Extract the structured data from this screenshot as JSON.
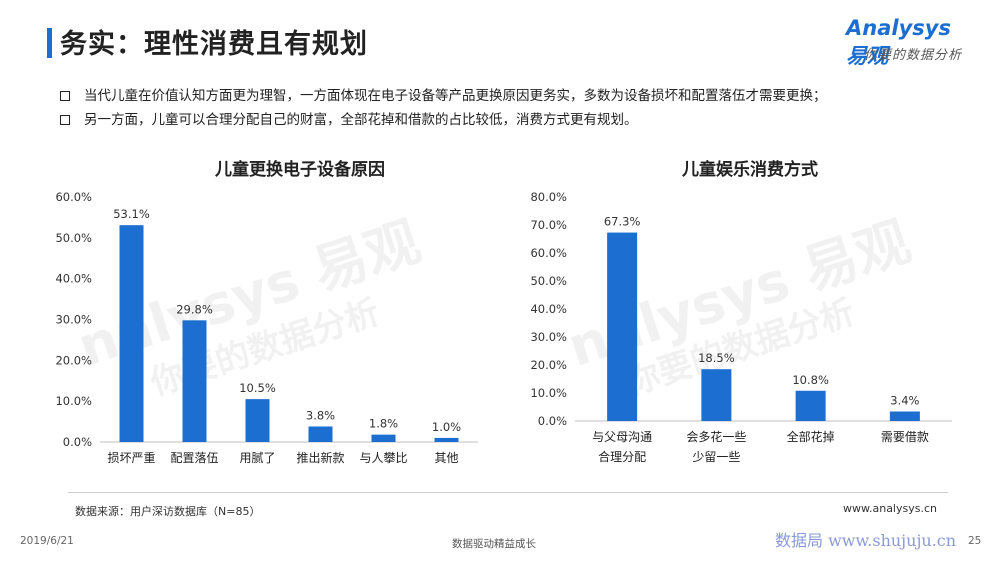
{
  "header": {
    "title": "务实：理性消费且有规划",
    "logo_word": "nalysys",
    "logo_initial": "A",
    "logo_cn": "易观",
    "logo_slogan": "你要的数据分析"
  },
  "bullets": [
    "当代儿童在价值认知方面更为理智，一方面体现在电子设备等产品更换原因更务实，多数为设备损坏和配置落伍才需要更换；",
    "另一方面，儿童可以合理分配自己的财富，全部花掉和借款的占比较低，消费方式更有规划。"
  ],
  "watermark": {
    "word": "nalysys 易观",
    "slogan": "你要的数据分析"
  },
  "chart_data": [
    {
      "type": "bar",
      "title": "儿童更换电子设备原因",
      "categories": [
        "损坏严重",
        "配置落伍",
        "用腻了",
        "推出新款",
        "与人攀比",
        "其他"
      ],
      "values": [
        53.1,
        29.8,
        10.5,
        3.8,
        1.8,
        1.0
      ],
      "value_labels": [
        "53.1%",
        "29.8%",
        "10.5%",
        "3.8%",
        "1.8%",
        "1.0%"
      ],
      "yticks": [
        "0.0%",
        "10.0%",
        "20.0%",
        "30.0%",
        "40.0%",
        "50.0%",
        "60.0%"
      ],
      "ylim": [
        0,
        60
      ],
      "grid": false,
      "bar_color": "#1c6fd1"
    },
    {
      "type": "bar",
      "title": "儿童娱乐消费方式",
      "categories": [
        "与父母沟通\n合理分配",
        "会多花一些\n少留一些",
        "全部花掉",
        "需要借款"
      ],
      "values": [
        67.3,
        18.5,
        10.8,
        3.4
      ],
      "value_labels": [
        "67.3%",
        "18.5%",
        "10.8%",
        "3.4%"
      ],
      "yticks": [
        "0.0%",
        "10.0%",
        "20.0%",
        "30.0%",
        "40.0%",
        "50.0%",
        "60.0%",
        "70.0%",
        "80.0%"
      ],
      "ylim": [
        0,
        80
      ],
      "grid": false,
      "bar_color": "#1c6fd1"
    }
  ],
  "source": "数据来源：用户深访数据库（N=85）",
  "site_url": "www.analysys.cn",
  "footer": {
    "date": "2019/6/21",
    "tagline": "数据驱动精益成长",
    "watermark_text": "数据局 www.shujuju.cn",
    "page": "25"
  }
}
